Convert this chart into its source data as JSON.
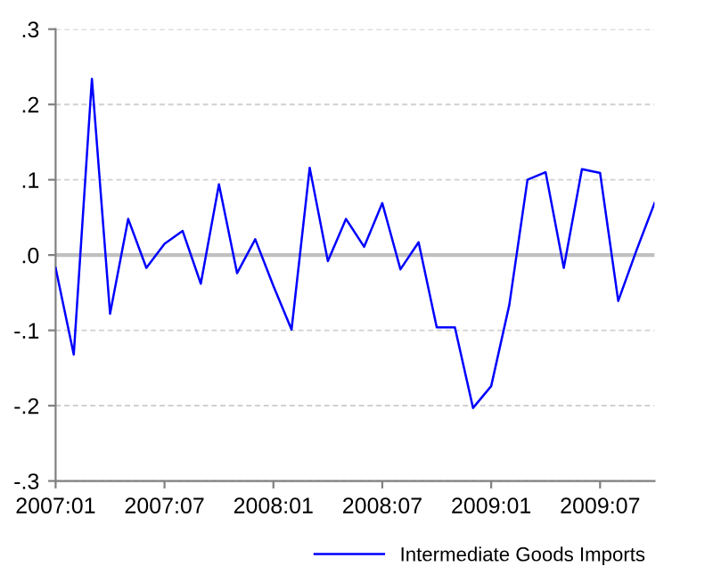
{
  "chart_data": {
    "type": "line",
    "x": [
      "2007-01",
      "2007-02",
      "2007-03",
      "2007-04",
      "2007-05",
      "2007-06",
      "2007-07",
      "2007-08",
      "2007-09",
      "2007-10",
      "2007-11",
      "2007-12",
      "2008-01",
      "2008-02",
      "2008-03",
      "2008-04",
      "2008-05",
      "2008-06",
      "2008-07",
      "2008-08",
      "2008-09",
      "2008-10",
      "2008-11",
      "2008-12",
      "2009-01",
      "2009-02",
      "2009-03",
      "2009-04",
      "2009-05",
      "2009-06",
      "2009-07",
      "2009-08",
      "2009-09",
      "2009-10"
    ],
    "series": [
      {
        "name": "Intermediate Goods Imports",
        "color": "#0000ff",
        "values": [
          -0.017,
          -0.132,
          0.234,
          -0.078,
          0.048,
          -0.017,
          0.015,
          0.032,
          -0.038,
          0.094,
          -0.024,
          0.021,
          -0.041,
          -0.099,
          0.116,
          -0.008,
          0.048,
          0.011,
          0.069,
          -0.019,
          0.017,
          -0.096,
          -0.096,
          -0.203,
          -0.174,
          -0.066,
          0.1,
          0.11,
          -0.017,
          0.114,
          0.109,
          -0.061,
          0.006,
          0.069
        ]
      }
    ],
    "xlim": [
      "2007-01",
      "2009-10"
    ],
    "xticks": [
      {
        "value": "2007-01",
        "label": "2007:01"
      },
      {
        "value": "2007-07",
        "label": "2007:07"
      },
      {
        "value": "2008-01",
        "label": "2008:01"
      },
      {
        "value": "2008-07",
        "label": "2008:07"
      },
      {
        "value": "2009-01",
        "label": "2009:01"
      },
      {
        "value": "2009-07",
        "label": "2009:07"
      }
    ],
    "ylim": [
      -0.3,
      0.3
    ],
    "yticks": [
      {
        "value": 0.3,
        "label": ".3"
      },
      {
        "value": 0.2,
        "label": ".2"
      },
      {
        "value": 0.1,
        "label": ".1"
      },
      {
        "value": 0.0,
        "label": ".0"
      },
      {
        "value": -0.1,
        "label": "-.1"
      },
      {
        "value": -0.2,
        "label": "-.2"
      },
      {
        "value": -0.3,
        "label": "-.3"
      }
    ],
    "ref_lines": [
      {
        "axis": "y",
        "value": 0,
        "color": "#c0c0c0",
        "line_style": "solid"
      }
    ],
    "grid": "y",
    "legend": "bottom right",
    "marker": "none",
    "line_style": "solid"
  }
}
